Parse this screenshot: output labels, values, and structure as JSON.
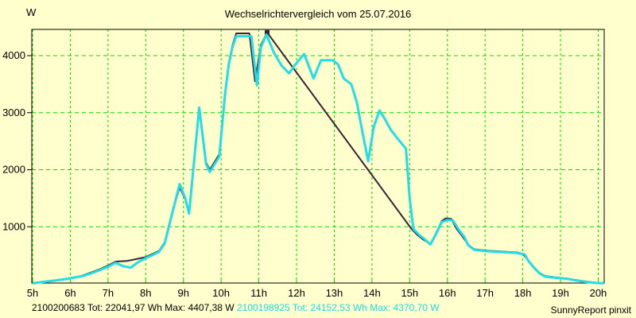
{
  "window": {
    "title": "Wechselrichtervergleich vom 25.07.2016"
  },
  "y_unit": "W",
  "footer": {
    "inverter1_summary": "2100200683 Tot: 22041,97 Wh Max: 4407,38 W",
    "inverter2_summary": "2100198925 Tot: 24152,53 Wh Max: 4370,70 W",
    "credit": "SunnyReport pinxit"
  },
  "colors": {
    "background": "#FFFFCE",
    "grid": "#00DC00",
    "axis": "#000000",
    "series1": "#3A2236",
    "series2": "#22DDE8",
    "footer_cyan_text": "#1FD9E4"
  },
  "chart_data": {
    "type": "line",
    "title": "Wechselrichtervergleich vom 25.07.2016",
    "ylabel": "W",
    "xlabel": "",
    "grid": true,
    "x_tick_hours": [
      5,
      6,
      7,
      8,
      9,
      10,
      11,
      12,
      13,
      14,
      15,
      16,
      17,
      18,
      19,
      20
    ],
    "x_tick_labels": [
      "5h",
      "6h",
      "7h",
      "8h",
      "9h",
      "10h",
      "11h",
      "12h",
      "13h",
      "14h",
      "15h",
      "16h",
      "17h",
      "18h",
      "19h",
      "20h"
    ],
    "y_ticks": [
      1000,
      2000,
      3000,
      4000
    ],
    "x_range": [
      5,
      20.17
    ],
    "y_range": [
      0,
      4460
    ],
    "series": [
      {
        "name": "2100200683",
        "total_wh": "22041,97",
        "max_w": "4407,38",
        "color_key": "series1",
        "note": "straight segment 11.22h-15.05h = data gap",
        "points": [
          [
            5.0,
            5
          ],
          [
            5.3,
            30
          ],
          [
            5.6,
            55
          ],
          [
            5.9,
            80
          ],
          [
            6.1,
            105
          ],
          [
            6.35,
            150
          ],
          [
            6.6,
            210
          ],
          [
            6.8,
            260
          ],
          [
            7.0,
            320
          ],
          [
            7.2,
            390
          ],
          [
            7.5,
            400
          ],
          [
            7.8,
            440
          ],
          [
            8.0,
            470
          ],
          [
            8.2,
            530
          ],
          [
            8.35,
            575
          ],
          [
            8.5,
            720
          ],
          [
            8.7,
            1250
          ],
          [
            8.9,
            1690
          ],
          [
            9.05,
            1480
          ],
          [
            9.15,
            1250
          ],
          [
            9.42,
            3060
          ],
          [
            9.6,
            2130
          ],
          [
            9.7,
            2000
          ],
          [
            9.95,
            2270
          ],
          [
            10.1,
            3330
          ],
          [
            10.2,
            3860
          ],
          [
            10.3,
            4180
          ],
          [
            10.4,
            4390
          ],
          [
            10.75,
            4390
          ],
          [
            10.9,
            3550
          ],
          [
            11.05,
            4180
          ],
          [
            11.22,
            4407
          ],
          [
            15.05,
            960
          ],
          [
            15.2,
            860
          ],
          [
            15.35,
            780
          ],
          [
            15.55,
            700
          ],
          [
            15.7,
            890
          ],
          [
            15.85,
            1100
          ],
          [
            15.95,
            1145
          ],
          [
            16.1,
            1140
          ],
          [
            16.25,
            960
          ],
          [
            16.4,
            830
          ],
          [
            16.55,
            690
          ],
          [
            16.7,
            610
          ],
          [
            16.85,
            595
          ],
          [
            17.1,
            580
          ],
          [
            17.5,
            565
          ],
          [
            17.85,
            550
          ],
          [
            18.0,
            525
          ],
          [
            18.15,
            410
          ],
          [
            18.3,
            290
          ],
          [
            18.45,
            190
          ],
          [
            18.6,
            135
          ],
          [
            18.9,
            112
          ],
          [
            19.15,
            95
          ],
          [
            19.4,
            68
          ],
          [
            19.7,
            38
          ],
          [
            19.95,
            20
          ],
          [
            20.1,
            12
          ]
        ],
        "max_marker": {
          "hour": 11.22,
          "watts": 4407
        }
      },
      {
        "name": "2100198925",
        "total_wh": "24152,53",
        "max_w": "4370,70",
        "color_key": "series2",
        "points": [
          [
            5.0,
            10
          ],
          [
            5.3,
            35
          ],
          [
            5.6,
            60
          ],
          [
            5.9,
            85
          ],
          [
            6.1,
            110
          ],
          [
            6.35,
            140
          ],
          [
            6.6,
            195
          ],
          [
            6.8,
            245
          ],
          [
            7.0,
            300
          ],
          [
            7.2,
            370
          ],
          [
            7.4,
            310
          ],
          [
            7.6,
            285
          ],
          [
            7.8,
            380
          ],
          [
            8.0,
            450
          ],
          [
            8.2,
            510
          ],
          [
            8.35,
            560
          ],
          [
            8.5,
            700
          ],
          [
            8.7,
            1230
          ],
          [
            8.9,
            1750
          ],
          [
            9.05,
            1500
          ],
          [
            9.15,
            1230
          ],
          [
            9.42,
            3090
          ],
          [
            9.6,
            2100
          ],
          [
            9.7,
            1960
          ],
          [
            9.95,
            2230
          ],
          [
            10.1,
            3300
          ],
          [
            10.2,
            3830
          ],
          [
            10.3,
            4150
          ],
          [
            10.4,
            4340
          ],
          [
            10.8,
            4340
          ],
          [
            10.95,
            3480
          ],
          [
            11.05,
            4140
          ],
          [
            11.2,
            4370
          ],
          [
            11.4,
            4050
          ],
          [
            11.6,
            3830
          ],
          [
            11.8,
            3690
          ],
          [
            11.95,
            3830
          ],
          [
            12.2,
            4030
          ],
          [
            12.45,
            3600
          ],
          [
            12.65,
            3920
          ],
          [
            12.95,
            3920
          ],
          [
            13.1,
            3850
          ],
          [
            13.25,
            3600
          ],
          [
            13.45,
            3500
          ],
          [
            13.6,
            3180
          ],
          [
            13.75,
            2650
          ],
          [
            13.9,
            2150
          ],
          [
            14.05,
            2760
          ],
          [
            14.2,
            3040
          ],
          [
            14.35,
            2880
          ],
          [
            14.5,
            2700
          ],
          [
            14.7,
            2530
          ],
          [
            14.9,
            2370
          ],
          [
            15.0,
            1500
          ],
          [
            15.1,
            960
          ],
          [
            15.25,
            860
          ],
          [
            15.4,
            780
          ],
          [
            15.55,
            690
          ],
          [
            15.7,
            875
          ],
          [
            15.85,
            1080
          ],
          [
            16.0,
            1120
          ],
          [
            16.15,
            1110
          ],
          [
            16.3,
            950
          ],
          [
            16.45,
            820
          ],
          [
            16.55,
            680
          ],
          [
            16.7,
            600
          ],
          [
            16.85,
            585
          ],
          [
            17.1,
            570
          ],
          [
            17.5,
            555
          ],
          [
            17.85,
            540
          ],
          [
            18.05,
            515
          ],
          [
            18.15,
            400
          ],
          [
            18.3,
            280
          ],
          [
            18.45,
            180
          ],
          [
            18.6,
            125
          ],
          [
            18.9,
            105
          ],
          [
            19.15,
            90
          ],
          [
            19.4,
            60
          ],
          [
            19.7,
            30
          ],
          [
            19.95,
            15
          ],
          [
            20.15,
            8
          ]
        ]
      }
    ]
  }
}
